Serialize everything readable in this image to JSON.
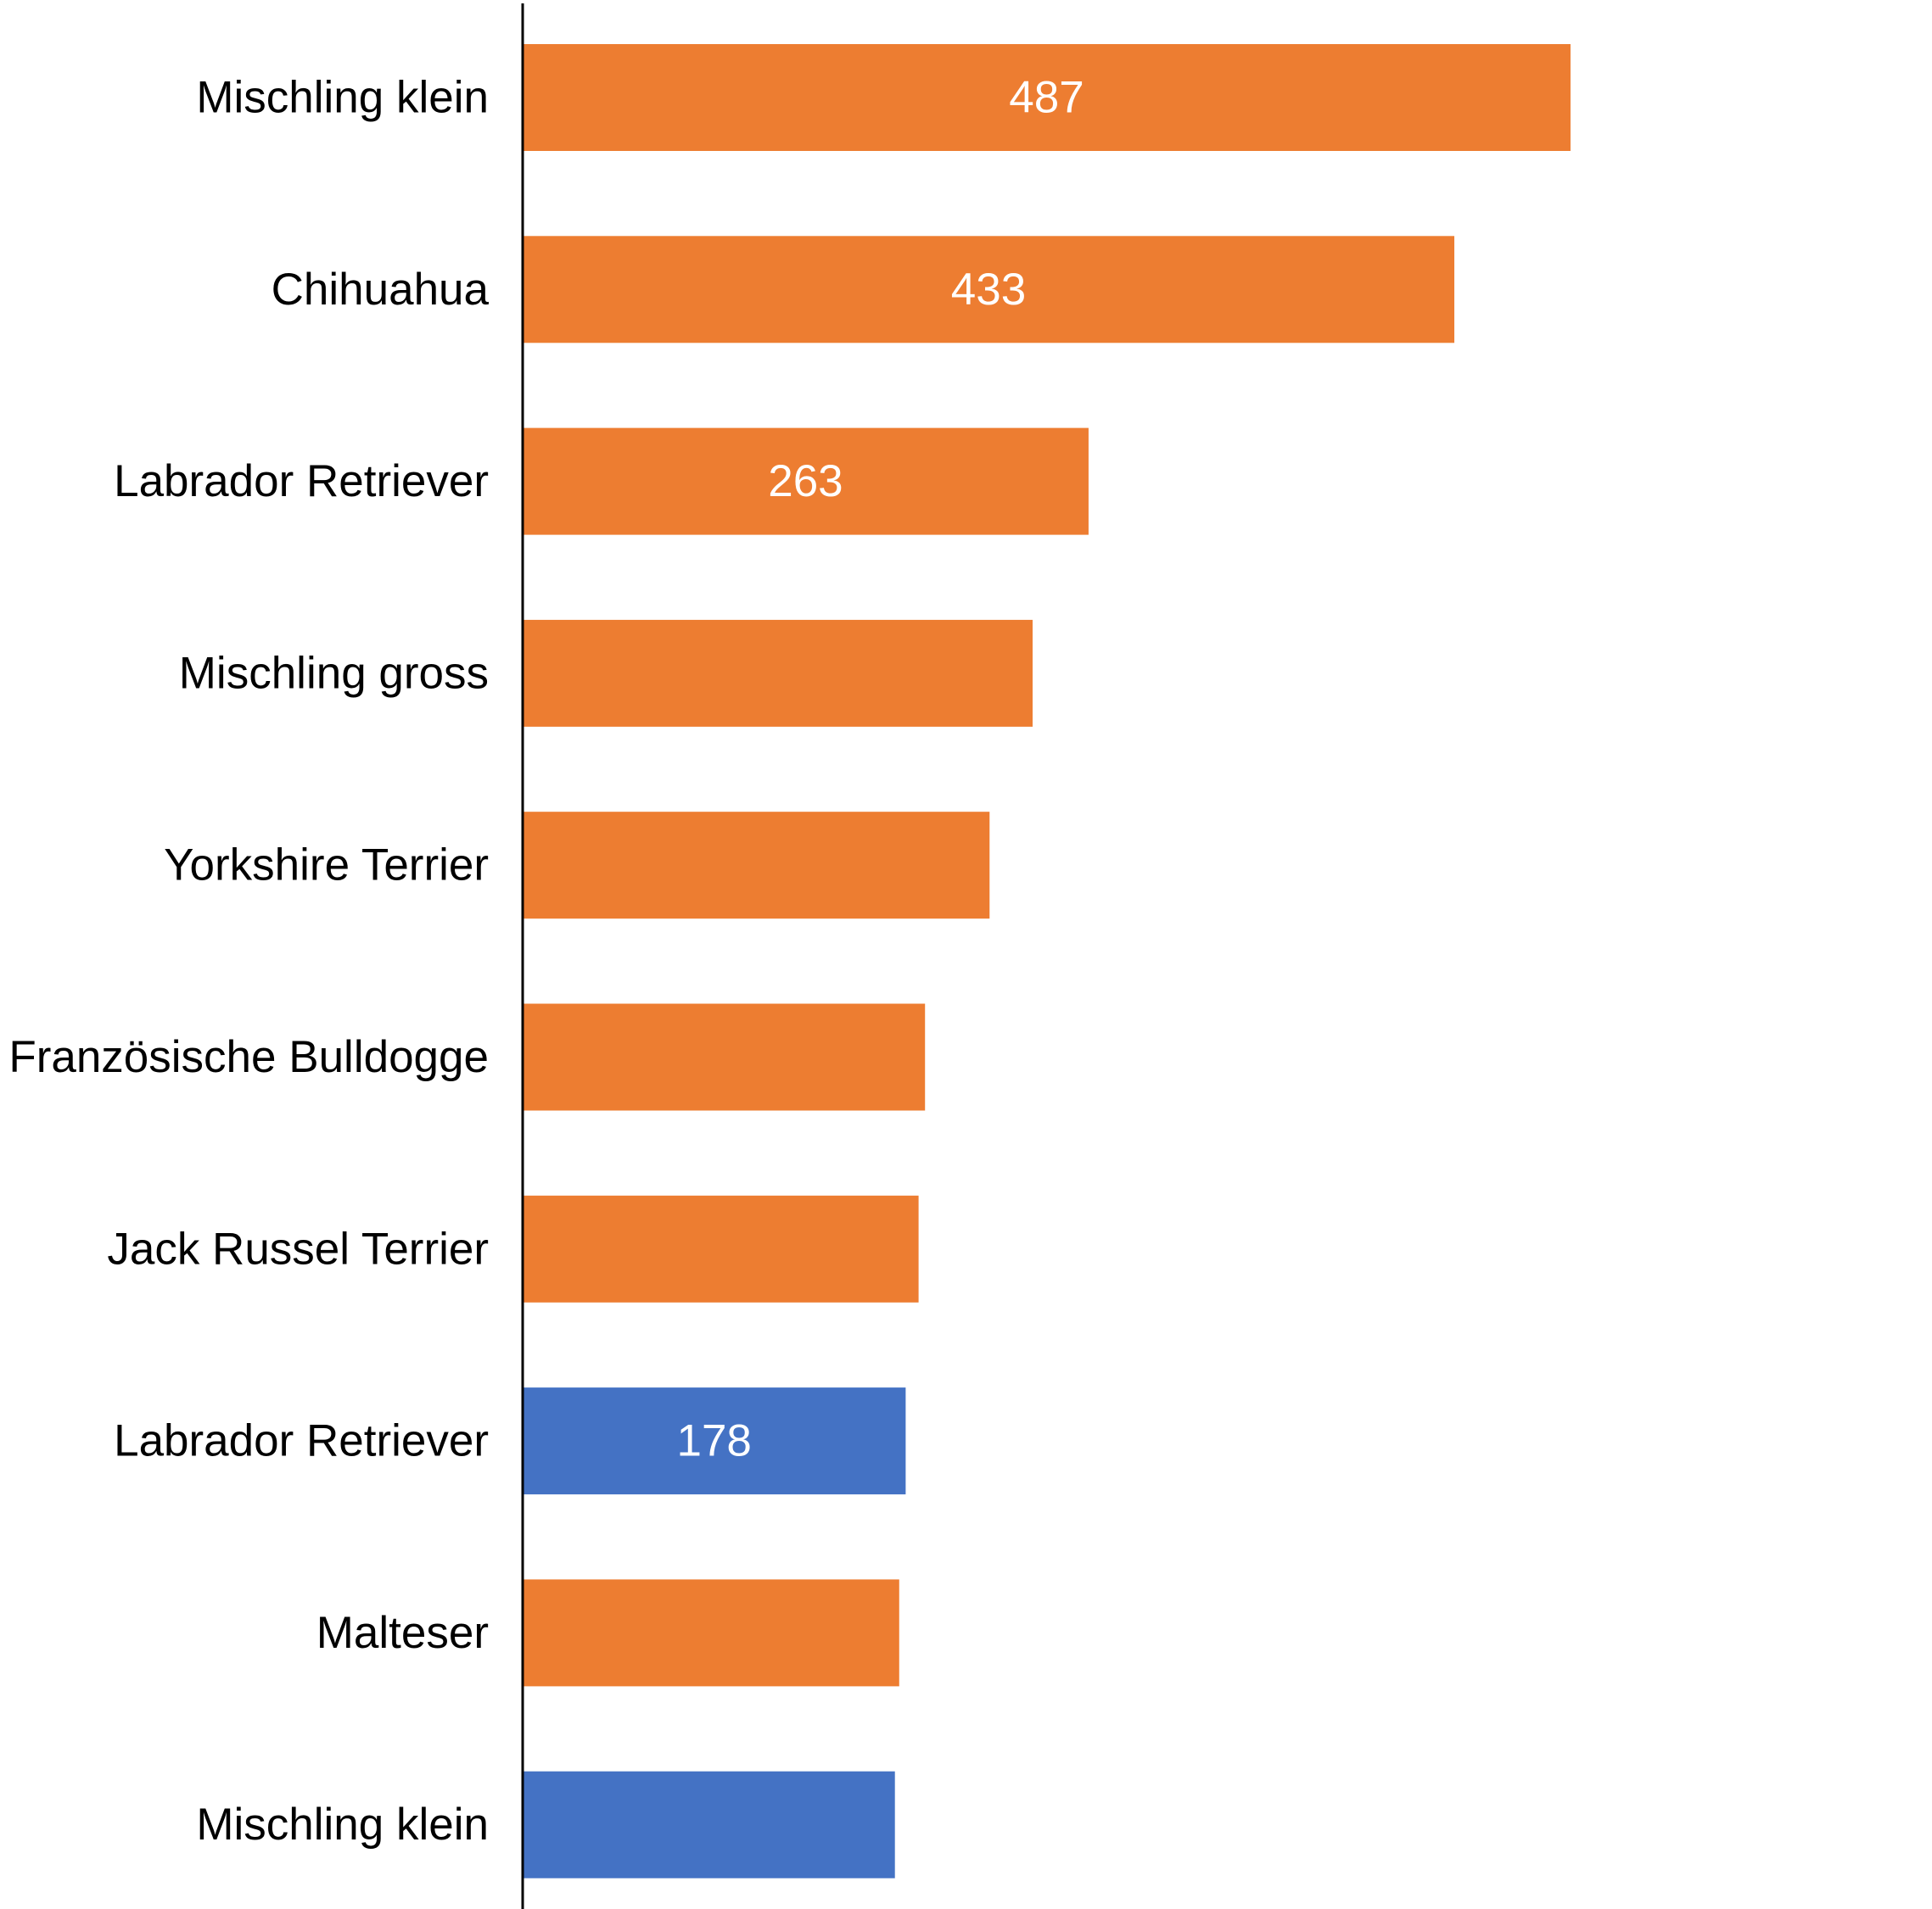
{
  "chart_data": {
    "type": "bar",
    "orientation": "horizontal",
    "categories": [
      "Mischling klein",
      "Chihuahua",
      "Labrador Retriever",
      "Mischling gross",
      "Yorkshire Terrier",
      "Französische Bulldogge",
      "Jack Russel Terrier",
      "Labrador Retriever",
      "Malteser",
      "Mischling klein"
    ],
    "values": [
      487,
      433,
      263,
      237,
      217,
      187,
      184,
      178,
      175,
      173
    ],
    "data_labels": [
      "487",
      "433",
      "263",
      "",
      "",
      "",
      "",
      "178",
      "",
      ""
    ],
    "bar_colors": [
      "#ED7D31",
      "#ED7D31",
      "#ED7D31",
      "#ED7D31",
      "#ED7D31",
      "#ED7D31",
      "#ED7D31",
      "#4472C4",
      "#ED7D31",
      "#4472C4"
    ],
    "title": "",
    "xlabel": "",
    "ylabel": "",
    "xlim": [
      0,
      655
    ],
    "grid": false,
    "legend": "none"
  },
  "colors": {
    "orange": "#ED7D31",
    "blue": "#4472C4",
    "axis": "#000000"
  }
}
